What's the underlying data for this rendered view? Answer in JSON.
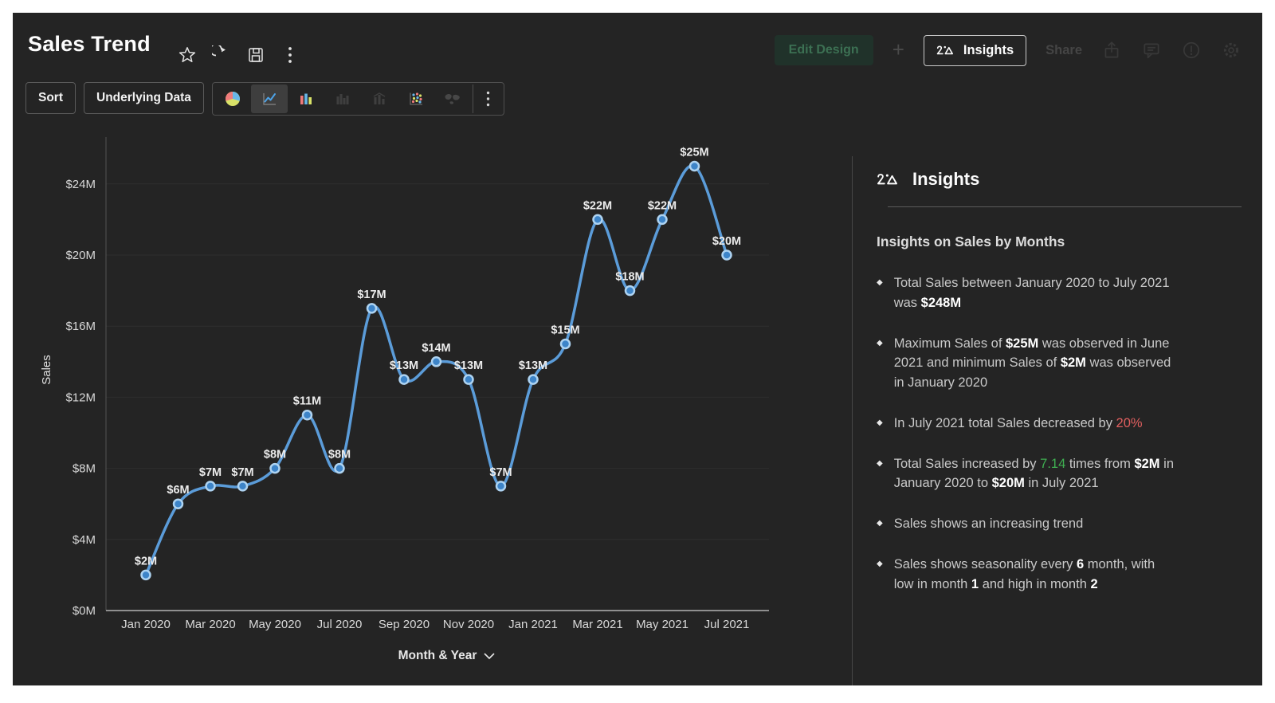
{
  "app": {
    "title": "Sales Trend"
  },
  "header": {
    "icons": [
      "star-icon",
      "refresh-icon",
      "save-icon",
      "kebab-icon"
    ],
    "edit_design_label": "Edit Design",
    "plus_label": "+",
    "insights_button_label": "Insights",
    "share_label": "Share",
    "dim_icons": [
      "export-icon",
      "comment-icon",
      "alert-icon",
      "settings-gear-icon"
    ]
  },
  "toolbar": {
    "sort_label": "Sort",
    "underlying_data_label": "Underlying Data",
    "chart_types": [
      "pie",
      "line",
      "bar",
      "clustered-bar",
      "combo-bar",
      "scatter",
      "map"
    ],
    "selected_chart_type": "line"
  },
  "chart_data": {
    "type": "line",
    "title": "",
    "xlabel": "Month & Year",
    "ylabel": "Sales",
    "categories": [
      "Jan 2020",
      "Feb 2020",
      "Mar 2020",
      "Apr 2020",
      "May 2020",
      "Jun 2020",
      "Jul 2020",
      "Aug 2020",
      "Sep 2020",
      "Oct 2020",
      "Nov 2020",
      "Dec 2020",
      "Jan 2021",
      "Feb 2021",
      "Mar 2021",
      "Apr 2021",
      "May 2021",
      "Jun 2021",
      "Jul 2021"
    ],
    "values": [
      2,
      6,
      7,
      7,
      8,
      11,
      8,
      17,
      13,
      14,
      13,
      7,
      13,
      15,
      22,
      18,
      22,
      25,
      20
    ],
    "point_labels": [
      "$2M",
      "$6M",
      "$7M",
      "$7M",
      "$8M",
      "$11M",
      "$8M",
      "$17M",
      "$13M",
      "$14M",
      "$13M",
      "$7M",
      "$13M",
      "$15M",
      "$22M",
      "$18M",
      "$22M",
      "$25M",
      "$20M"
    ],
    "x_tick_labels": [
      "Jan 2020",
      "Mar 2020",
      "May 2020",
      "Jul 2020",
      "Sep 2020",
      "Nov 2020",
      "Jan 2021",
      "Mar 2021",
      "May 2021",
      "Jul 2021"
    ],
    "y_tick_labels": [
      "$0M",
      "$4M",
      "$8M",
      "$12M",
      "$16M",
      "$20M",
      "$24M"
    ],
    "y_tick_values": [
      0,
      4,
      8,
      12,
      16,
      20,
      24
    ],
    "ylim": [
      0,
      26
    ],
    "grid": "horizontal",
    "legend": "none",
    "line_color": "#5b9cd9",
    "marker_fill": "#3d84c8",
    "marker_ring": "#aed3f1"
  },
  "insights_panel": {
    "title": "Insights",
    "subtitle": "Insights on Sales by Months",
    "bullet_glyph": "◆",
    "items": [
      [
        {
          "t": "Total Sales between January 2020 to July 2021 was "
        },
        {
          "t": "$248M",
          "s": "bold"
        }
      ],
      [
        {
          "t": "Maximum Sales of "
        },
        {
          "t": "$25M",
          "s": "bold"
        },
        {
          "t": " was observed in June 2021 and minimum Sales of "
        },
        {
          "t": "$2M",
          "s": "bold"
        },
        {
          "t": " was observed in January 2020"
        }
      ],
      [
        {
          "t": "In July 2021 total Sales decreased by "
        },
        {
          "t": "20%",
          "s": "red"
        }
      ],
      [
        {
          "t": "Total Sales increased by "
        },
        {
          "t": "7.14",
          "s": "green"
        },
        {
          "t": " times from "
        },
        {
          "t": "$2M",
          "s": "bold"
        },
        {
          "t": " in January 2020 to "
        },
        {
          "t": "$20M",
          "s": "bold"
        },
        {
          "t": " in July 2021"
        }
      ],
      [
        {
          "t": "Sales shows an increasing trend"
        }
      ],
      [
        {
          "t": "Sales shows seasonality every "
        },
        {
          "t": "6",
          "s": "bold"
        },
        {
          "t": " month, with low in month "
        },
        {
          "t": "1",
          "s": "bold"
        },
        {
          "t": " and high in month "
        },
        {
          "t": "2",
          "s": "bold"
        }
      ]
    ]
  },
  "colors": {
    "background": "#242424",
    "accent_line": "#5b9cd9",
    "negative": "#e15f5f",
    "positive": "#3fae51",
    "icon_pink": "#ef7b7b",
    "icon_blue": "#68b7e8",
    "icon_yellow": "#d9e268"
  }
}
